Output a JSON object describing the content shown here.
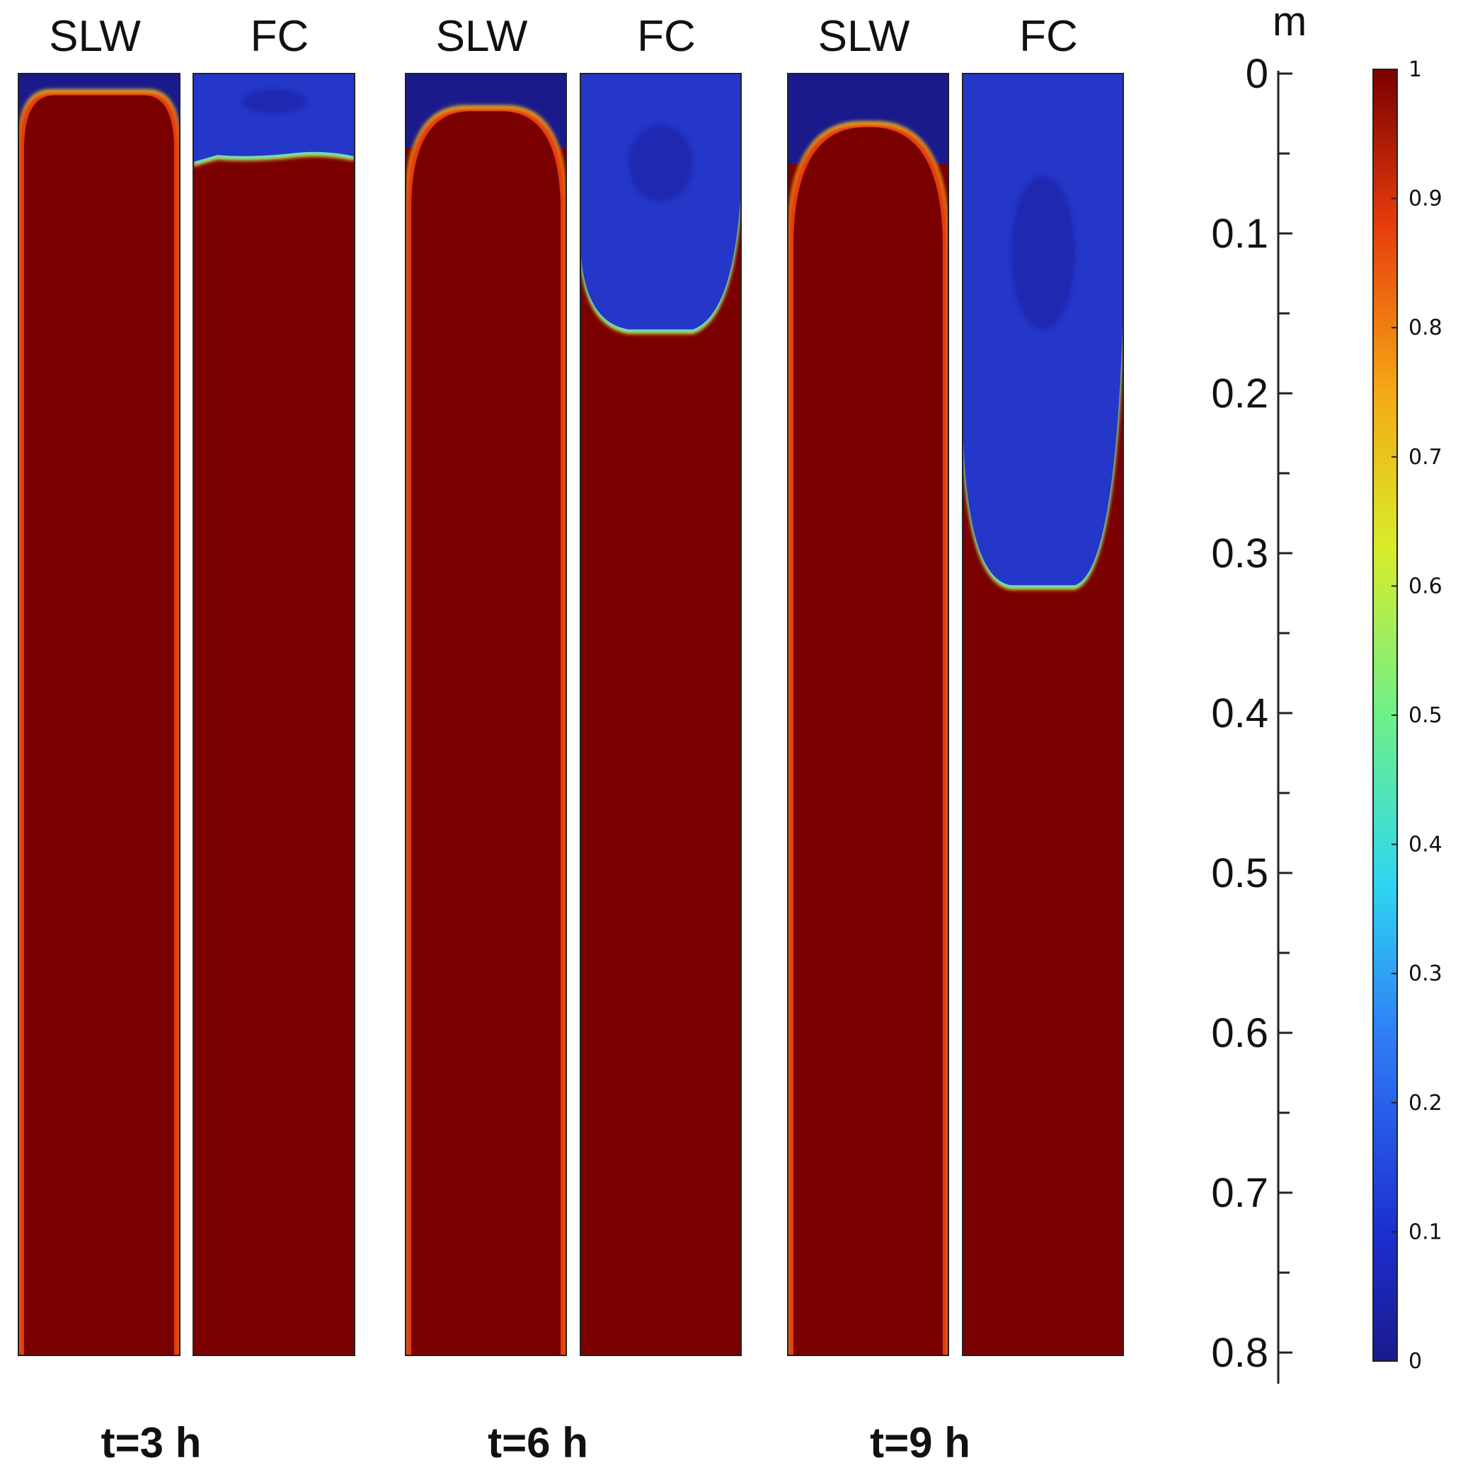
{
  "chart_data": {
    "type": "heatmap",
    "groups": [
      {
        "time_label": "t=3 h",
        "panels": [
          {
            "label": "SLW",
            "front_depth": 0.01,
            "shape": "dome"
          },
          {
            "label": "FC",
            "front_depth": 0.05,
            "shape": "rough"
          }
        ]
      },
      {
        "time_label": "t=6 h",
        "panels": [
          {
            "label": "SLW",
            "front_depth": 0.02,
            "shape": "dome"
          },
          {
            "label": "FC",
            "front_depth": 0.16,
            "shape": "plume"
          }
        ]
      },
      {
        "time_label": "t=9 h",
        "panels": [
          {
            "label": "SLW",
            "front_depth": 0.03,
            "shape": "dome"
          },
          {
            "label": "FC",
            "front_depth": 0.32,
            "shape": "plume"
          }
        ]
      }
    ],
    "depth_axis": {
      "unit": "m",
      "range": [
        0,
        0.8
      ],
      "ticks": [
        "0",
        "0.1",
        "0.2",
        "0.3",
        "0.4",
        "0.5",
        "0.6",
        "0.7",
        "0.8"
      ]
    },
    "colorbar": {
      "range": [
        0,
        1
      ],
      "ticks": [
        "0",
        "0.1",
        "0.2",
        "0.3",
        "0.4",
        "0.5",
        "0.6",
        "0.7",
        "0.8",
        "0.9",
        "1"
      ],
      "colormap": "jet",
      "low_color": "#1a1a8c",
      "high_color": "#7a0000"
    }
  }
}
